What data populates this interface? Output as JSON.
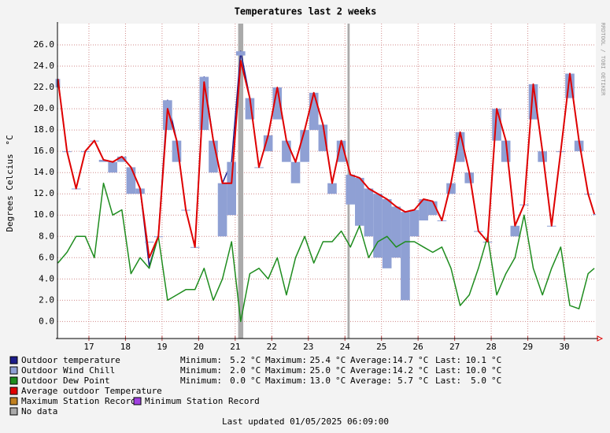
{
  "chart_data": {
    "type": "line",
    "title": "Temperatures last 2 weeks",
    "ylabel": "Degrees Celcius",
    "yunit": "°C",
    "watermark": "RRDTOOL / TOBI OETIKER",
    "footer": "Last updated 01/05/2025 06:09:00",
    "xlim": [
      16.14,
      30.86
    ],
    "xticks": [
      17,
      18,
      19,
      20,
      21,
      22,
      23,
      24,
      25,
      26,
      27,
      28,
      29,
      30
    ],
    "ylim": [
      -1.6,
      28
    ],
    "yticks": [
      {
        "value": 0,
        "label": "0.0"
      },
      {
        "value": 2,
        "label": "2.0"
      },
      {
        "value": 4,
        "label": "4.0"
      },
      {
        "value": 6,
        "label": "6.0"
      },
      {
        "value": 8,
        "label": "8.0"
      },
      {
        "value": 10,
        "label": "10.0"
      },
      {
        "value": 12,
        "label": "12.0"
      },
      {
        "value": 14,
        "label": "14.0"
      },
      {
        "value": 16,
        "label": "16.0"
      },
      {
        "value": 18,
        "label": "18.0"
      },
      {
        "value": 20,
        "label": "20.0"
      },
      {
        "value": 22,
        "label": "22.0"
      },
      {
        "value": 24,
        "label": "24.0"
      },
      {
        "value": 26,
        "label": "26.0"
      }
    ],
    "grid": true,
    "no_data": [
      [
        21.08,
        21.22
      ],
      [
        24.07,
        24.13
      ]
    ],
    "no_data_color": "#aaaaaa",
    "x": [
      16.15,
      16.4,
      16.65,
      16.9,
      17.15,
      17.4,
      17.65,
      17.9,
      18.15,
      18.4,
      18.65,
      18.9,
      19.15,
      19.4,
      19.65,
      19.9,
      20.15,
      20.4,
      20.65,
      20.9,
      21.15,
      21.4,
      21.65,
      21.9,
      22.15,
      22.4,
      22.65,
      22.9,
      23.15,
      23.4,
      23.65,
      23.9,
      24.15,
      24.4,
      24.65,
      24.9,
      25.15,
      25.4,
      25.65,
      25.9,
      26.15,
      26.4,
      26.65,
      26.9,
      27.15,
      27.4,
      27.65,
      27.9,
      28.15,
      28.4,
      28.65,
      28.9,
      29.15,
      29.4,
      29.65,
      29.9,
      30.15,
      30.4,
      30.65,
      30.82
    ],
    "series": [
      {
        "name": "Outdoor temperature",
        "color": "#1c1c8a",
        "draw": "line",
        "values": [
          22.8,
          16,
          12.5,
          16,
          17,
          15.2,
          15,
          15.5,
          14.5,
          12.5,
          5.2,
          8,
          20.8,
          17,
          10.5,
          7,
          23,
          17,
          13,
          15,
          25.4,
          21,
          14.5,
          17.5,
          22,
          17,
          15,
          18,
          21.5,
          18.5,
          13,
          17,
          13.8,
          13.5,
          12.5,
          12,
          11.5,
          10.8,
          10.3,
          10.5,
          11.5,
          11.3,
          9.5,
          13,
          17.8,
          14,
          8.5,
          7.5,
          20,
          17,
          9,
          11,
          22.3,
          16,
          9,
          16,
          23.3,
          17,
          12,
          10.1
        ],
        "stats": [
          {
            "label": "Minimum:",
            "value": "5.2",
            "unit": "°C"
          },
          {
            "label": "Maximum:",
            "value": "25.4",
            "unit": "°C"
          },
          {
            "label": "Average:",
            "value": "14.7",
            "unit": "°C"
          },
          {
            "label": "Last:",
            "value": "10.1",
            "unit": "°C"
          }
        ]
      },
      {
        "name": "Outdoor Wind Chill",
        "color": "#8fa0d4",
        "draw": "bars",
        "values": [
          22,
          16,
          12.5,
          16,
          17,
          15,
          14,
          15,
          12,
          12,
          7.5,
          8,
          18,
          15,
          10.5,
          7,
          18,
          14,
          8,
          10,
          25,
          19,
          14.5,
          16,
          19,
          15,
          13,
          15,
          18,
          16,
          12,
          15,
          11,
          9,
          8,
          6,
          5,
          6,
          2,
          8,
          9.5,
          10,
          9.5,
          12,
          15,
          13,
          8.5,
          7.5,
          17,
          15,
          8,
          11,
          19,
          15,
          9,
          16,
          21,
          16,
          12,
          10
        ],
        "stats": [
          {
            "label": "Minimum:",
            "value": "2.0",
            "unit": "°C"
          },
          {
            "label": "Maximum:",
            "value": "25.0",
            "unit": "°C"
          },
          {
            "label": "Average:",
            "value": "14.2",
            "unit": "°C"
          },
          {
            "label": "Last:",
            "value": "10.0",
            "unit": "°C"
          }
        ]
      },
      {
        "name": "Outdoor Dew Point",
        "color": "#1e8c1e",
        "draw": "line",
        "values": [
          5.5,
          6.5,
          8,
          8,
          6,
          13,
          10,
          10.5,
          4.5,
          6,
          5,
          8,
          2,
          2.5,
          3,
          3,
          5,
          2,
          4,
          7.5,
          0,
          4.5,
          5,
          4,
          6,
          2.5,
          6,
          8,
          5.5,
          7.5,
          7.5,
          8.5,
          7,
          9,
          6,
          7.5,
          8,
          7,
          7.5,
          7.5,
          7,
          6.5,
          7,
          5,
          1.5,
          2.5,
          5,
          8,
          2.5,
          4.5,
          6,
          10,
          5,
          2.5,
          5,
          7,
          1.5,
          1.2,
          4.5,
          5
        ],
        "stats": [
          {
            "label": "Minimum:",
            "value": "0.0",
            "unit": "°C"
          },
          {
            "label": "Maximum:",
            "value": "13.0",
            "unit": "°C"
          },
          {
            "label": "Average:",
            "value": "5.7",
            "unit": "°C"
          },
          {
            "label": "Last:",
            "value": "5.0",
            "unit": "°C"
          }
        ]
      },
      {
        "name": "Average outdoor Temperature",
        "color": "#e00000",
        "draw": "line",
        "values": [
          22.8,
          16,
          12.5,
          16,
          17,
          15.2,
          15,
          15.5,
          14.5,
          12.5,
          6,
          8,
          20,
          17,
          10.5,
          7,
          22.5,
          17,
          13,
          13,
          24.5,
          21,
          14.5,
          17.5,
          22,
          17,
          15,
          18,
          21.5,
          18.5,
          13,
          17,
          13.8,
          13.5,
          12.5,
          12,
          11.5,
          10.8,
          10.3,
          10.5,
          11.5,
          11.3,
          9.5,
          13,
          17.8,
          14,
          8.5,
          7.5,
          20,
          17,
          9,
          11,
          22.3,
          16,
          9,
          16,
          23.3,
          17,
          12,
          10.1
        ]
      }
    ],
    "legend_extra": [
      {
        "name": "Maximum Station Record",
        "color": "#c08020"
      },
      {
        "name": "Minimum Station Record",
        "color": "#a040e0"
      },
      {
        "name": "No data",
        "color": "#aaaaaa"
      }
    ]
  }
}
